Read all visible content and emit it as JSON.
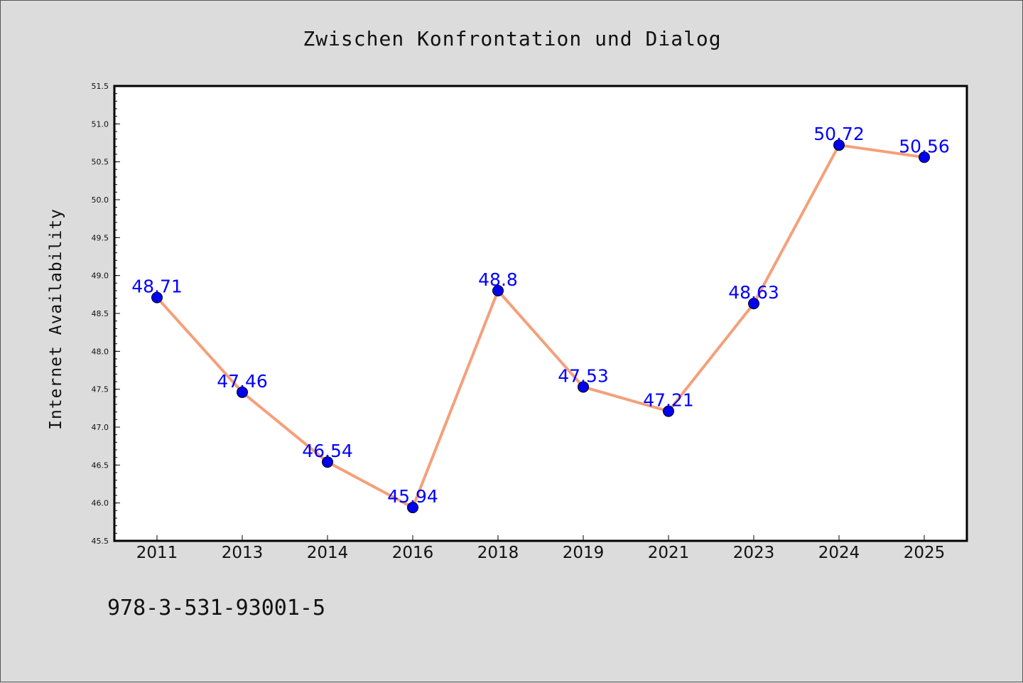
{
  "chart_data": {
    "type": "line",
    "title": "Zwischen Konfrontation und Dialog",
    "xlabel": "",
    "ylabel": "Internet Availability",
    "categories": [
      "2011",
      "2013",
      "2014",
      "2016",
      "2018",
      "2019",
      "2021",
      "2023",
      "2024",
      "2025"
    ],
    "series": [
      {
        "values": [
          48.71,
          47.46,
          46.54,
          45.94,
          48.8,
          47.53,
          47.21,
          48.63,
          50.72,
          50.56
        ],
        "labels": [
          "48.71",
          "47.46",
          "46.54",
          "45.94",
          "48.8",
          "47.53",
          "47.21",
          "48.63",
          "50.72",
          "50.56"
        ],
        "line_color": "#f4a07a",
        "marker_color": "#0000ee"
      }
    ],
    "ylim": [
      45.5,
      51.5
    ],
    "yticks": [
      "45.5",
      "46.0",
      "46.5",
      "47.0",
      "47.5",
      "48.0",
      "48.5",
      "49.0",
      "49.5",
      "50.0",
      "50.5",
      "51.0",
      "51.5"
    ],
    "grid": false,
    "legend": "none",
    "label_color": "#0000ff"
  },
  "annotation": "978-3-531-93001-5",
  "colors": {
    "background": "#dcdcdc",
    "plot_background": "#ffffff"
  }
}
